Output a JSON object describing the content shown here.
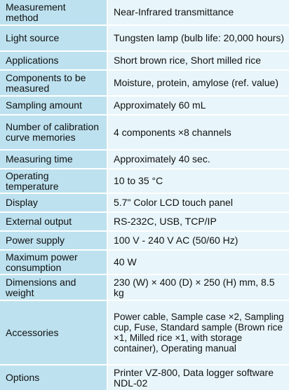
{
  "specs": {
    "rows": [
      {
        "label": "Measurement method",
        "value": "Near-Infrared transmittance"
      },
      {
        "label": "Light source",
        "value": "Tungsten lamp (bulb life: 20,000 hours)"
      },
      {
        "label": "Applications",
        "value": "Short brown rice, Short milled rice"
      },
      {
        "label": "Components to be measured",
        "value": "Moisture, protein, amylose (ref. value)"
      },
      {
        "label": "Sampling amount",
        "value": "Approximately 60 mL"
      },
      {
        "label": "Number of calibration curve memories",
        "value": "4 components ×8 channels"
      },
      {
        "label": "Measuring time",
        "value": "Approximately 40 sec."
      },
      {
        "label": "Operating temperature",
        "value": "10 to 35 °C"
      },
      {
        "label": "Display",
        "value": "5.7\" Color LCD touch panel"
      },
      {
        "label": "External output",
        "value": "RS-232C, USB, TCP/IP"
      },
      {
        "label": "Power supply",
        "value": "100 V - 240 V AC (50/60 Hz)"
      },
      {
        "label": "Maximum power consumption",
        "value": "40 W"
      },
      {
        "label": "Dimensions and weight",
        "value": "230 (W) × 400 (D) × 250 (H) mm, 8.5 kg"
      },
      {
        "label": "Accessories",
        "value": "Power cable, Sample case ×2, Sampling cup, Fuse, Standard sample (Brown rice ×1, Milled rice ×1, with storage container), Operating manual"
      },
      {
        "label": "Options",
        "value": "Printer VZ-800, Data logger software NDL-02"
      }
    ]
  },
  "colors": {
    "label_background": "#bde1ef",
    "value_background": "#e8f5fa",
    "text": "#111111"
  }
}
